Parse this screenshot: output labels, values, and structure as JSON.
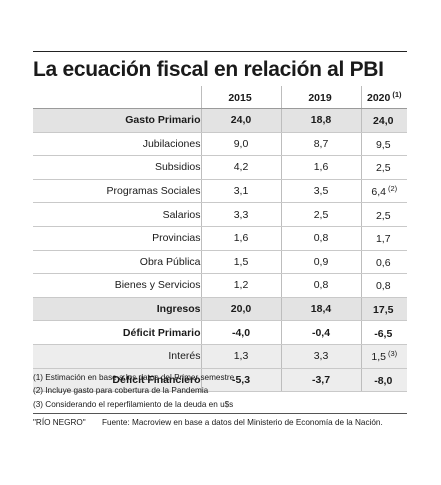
{
  "title": "La ecuación fiscal en relación al PBI",
  "columns": [
    {
      "label": "2015",
      "sup": ""
    },
    {
      "label": "2019",
      "sup": ""
    },
    {
      "label": "2020",
      "sup": "(1)"
    }
  ],
  "rows": [
    {
      "label": "Gasto Primario",
      "v1": "24,0",
      "v2": "18,8",
      "v3": "24,0",
      "sup": ""
    },
    {
      "label": "Jubilaciones",
      "v1": "9,0",
      "v2": "8,7",
      "v3": "9,5",
      "sup": ""
    },
    {
      "label": "Subsidios",
      "v1": "4,2",
      "v2": "1,6",
      "v3": "2,5",
      "sup": ""
    },
    {
      "label": "Programas Sociales",
      "v1": "3,1",
      "v2": "3,5",
      "v3": "6,4",
      "sup": "(2)"
    },
    {
      "label": "Salarios",
      "v1": "3,3",
      "v2": "2,5",
      "v3": "2,5",
      "sup": ""
    },
    {
      "label": "Provincias",
      "v1": "1,6",
      "v2": "0,8",
      "v3": "1,7",
      "sup": ""
    },
    {
      "label": "Obra Pública",
      "v1": "1,5",
      "v2": "0,9",
      "v3": "0,6",
      "sup": ""
    },
    {
      "label": "Bienes y Servicios",
      "v1": "1,2",
      "v2": "0,8",
      "v3": "0,8",
      "sup": ""
    },
    {
      "label": "Ingresos",
      "v1": "20,0",
      "v2": "18,4",
      "v3": "17,5",
      "sup": ""
    },
    {
      "label": "Déficit Primario",
      "v1": "-4,0",
      "v2": "-0,4",
      "v3": "-6,5",
      "sup": ""
    },
    {
      "label": "Interés",
      "v1": "1,3",
      "v2": "3,3",
      "v3": "1,5",
      "sup": "(3)"
    },
    {
      "label": "Déficit Financiero",
      "v1": "-5,3",
      "v2": "-3,7",
      "v3": "-8,0",
      "sup": ""
    }
  ],
  "notes": [
    "(1) Estimación en base a los datos del Primer semestre",
    "(2) Incluye gasto para cobertura de la Pandemia",
    "(3) Considerando el reperfilamiento de la deuda en u$s"
  ],
  "credit": "\"RÍO NEGRO\"",
  "source": "Fuente: Macroview en base a datos del Ministerio de Economía de la Nación.",
  "colors": {
    "highlight": "#e3e3e3",
    "highlight_light": "#ededed"
  }
}
